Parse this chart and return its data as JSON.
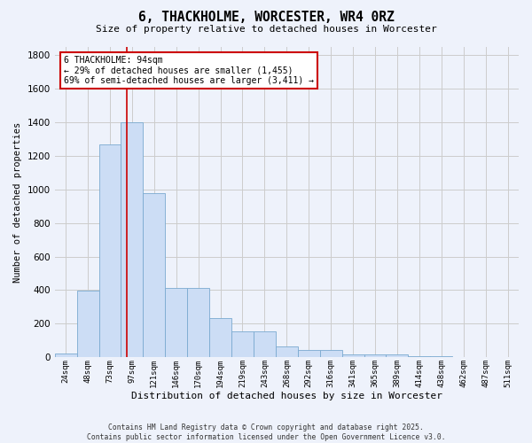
{
  "title": "6, THACKHOLME, WORCESTER, WR4 0RZ",
  "subtitle": "Size of property relative to detached houses in Worcester",
  "xlabel": "Distribution of detached houses by size in Worcester",
  "ylabel": "Number of detached properties",
  "categories": [
    "24sqm",
    "48sqm",
    "73sqm",
    "97sqm",
    "121sqm",
    "146sqm",
    "170sqm",
    "194sqm",
    "219sqm",
    "243sqm",
    "268sqm",
    "292sqm",
    "316sqm",
    "341sqm",
    "365sqm",
    "389sqm",
    "414sqm",
    "438sqm",
    "462sqm",
    "487sqm",
    "511sqm"
  ],
  "values": [
    25,
    395,
    1265,
    1400,
    975,
    415,
    415,
    235,
    155,
    155,
    65,
    45,
    45,
    15,
    15,
    15,
    5,
    5,
    0,
    0,
    0
  ],
  "bar_color": "#ccddf5",
  "bar_edge_color": "#7aaad0",
  "grid_color": "#cccccc",
  "background_color": "#eef2fb",
  "red_line_x": 2.75,
  "annotation_text": "6 THACKHOLME: 94sqm\n← 29% of detached houses are smaller (1,455)\n69% of semi-detached houses are larger (3,411) →",
  "ylim": [
    0,
    1850
  ],
  "yticks": [
    0,
    200,
    400,
    600,
    800,
    1000,
    1200,
    1400,
    1600,
    1800
  ],
  "footer_line1": "Contains HM Land Registry data © Crown copyright and database right 2025.",
  "footer_line2": "Contains public sector information licensed under the Open Government Licence v3.0."
}
